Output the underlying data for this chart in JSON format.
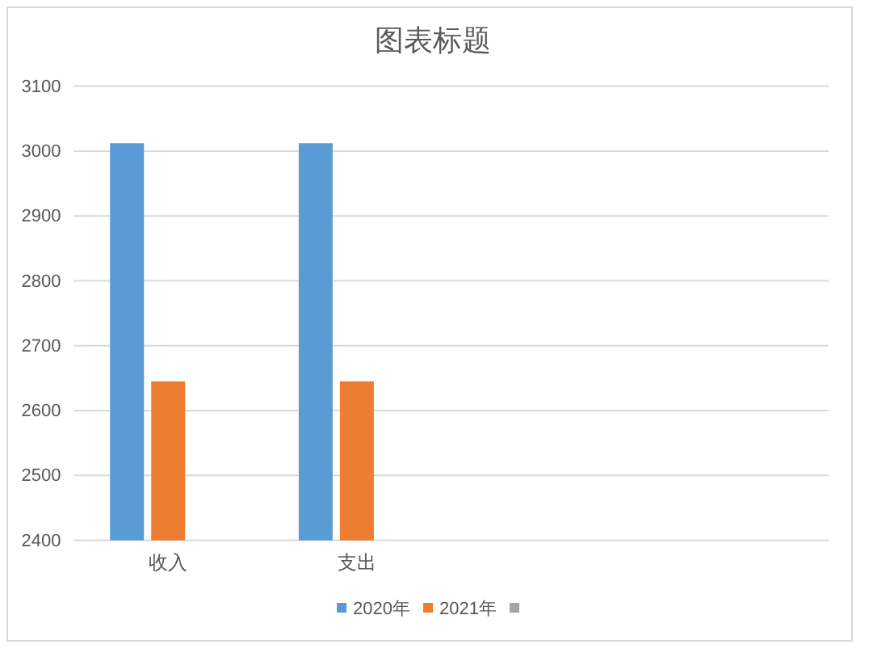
{
  "chart_data": {
    "type": "bar",
    "title": "图表标题",
    "categories": [
      "收入",
      "支出",
      null,
      null
    ],
    "series": [
      {
        "name": "2020年",
        "color": "#5b9bd5",
        "values": [
          3012,
          3012,
          null,
          null
        ]
      },
      {
        "name": "2021年",
        "color": "#ed7d31",
        "values": [
          2645,
          2645,
          null,
          null
        ]
      },
      {
        "color": "#a5a5a5",
        "values": [
          null,
          null,
          null,
          null
        ]
      }
    ],
    "ylim": [
      2400,
      3100
    ],
    "yticks": [
      2400,
      2500,
      2600,
      2700,
      2800,
      2900,
      3000,
      3100
    ],
    "grid": "y",
    "legend": "bottom"
  }
}
